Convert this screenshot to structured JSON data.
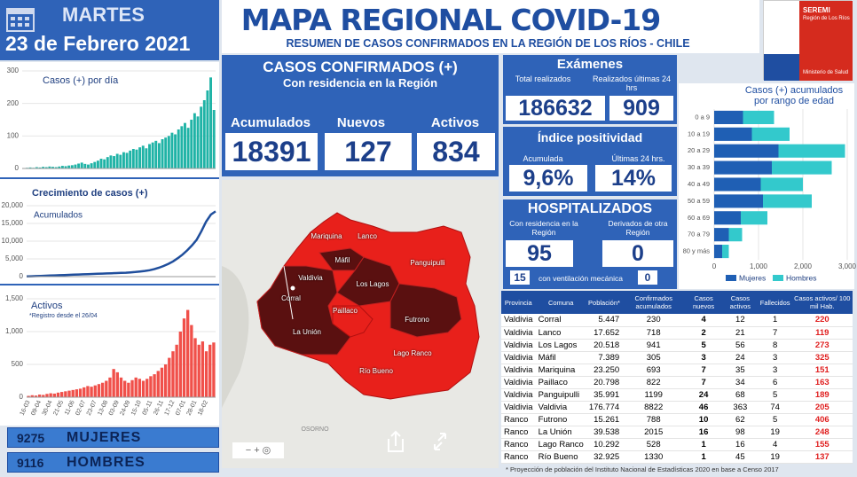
{
  "header": {
    "day": "MARTES",
    "date": "23 de Febrero 2021",
    "title": "MAPA REGIONAL COVID-19",
    "subtitle": "RESUMEN DE CASOS CONFIRMADOS EN LA REGIÓN DE LOS RÍOS - CHILE"
  },
  "logo": {
    "top": "SEREMI",
    "region": "Región de Los Ríos",
    "ministry": "Ministerio de Salud"
  },
  "confirmed": {
    "title": "CASOS CONFIRMADOS (+)",
    "subtitle": "Con residencia en la Región",
    "items": [
      {
        "label": "Acumulados",
        "value": 18391
      },
      {
        "label": "Nuevos",
        "value": 127
      },
      {
        "label": "Activos",
        "value": 834
      }
    ]
  },
  "exams": {
    "title": "Exámenes",
    "total_label": "Total realizados",
    "recent_label": "Realizados últimas 24 hrs",
    "total": 186632,
    "recent": 909
  },
  "positivity": {
    "title": "Índice positividad",
    "accum_label": "Acumulada",
    "recent_label": "Últimas 24 hrs.",
    "accum": "9,6%",
    "recent": "14%"
  },
  "hospital": {
    "title": "HOSPITALIZADOS",
    "resident_label": "Con residencia en la Región",
    "derived_label": "Derivados de otra Región",
    "resident": 95,
    "derived": 0,
    "ventilated": 15,
    "ventilated_label": "con ventilación mecánica",
    "ventilated_derived": 0
  },
  "sex": [
    {
      "value": 9275,
      "label": "MUJERES"
    },
    {
      "value": 9116,
      "label": "HOMBRES"
    }
  ],
  "map": {
    "labels": [
      "Mariquina",
      "Lanco",
      "Máfil",
      "Panguipulli",
      "Valdivia",
      "Los Lagos",
      "Corral",
      "Paillaco",
      "Futrono",
      "La Unión",
      "Lago Ranco",
      "Río Bueno",
      "OSORNO"
    ]
  },
  "table": {
    "header": [
      "Provincia",
      "Comuna",
      "Población*",
      "Confirmados acumulados",
      "Casos nuevos",
      "Casos activos",
      "Fallecidos",
      "Casos activos/ 100 mil Hab."
    ],
    "rows": [
      [
        "Valdivia",
        "Corral",
        "5.447",
        "230",
        "4",
        "12",
        "1",
        "220"
      ],
      [
        "Valdivia",
        "Lanco",
        "17.652",
        "718",
        "2",
        "21",
        "7",
        "119"
      ],
      [
        "Valdivia",
        "Los Lagos",
        "20.518",
        "941",
        "5",
        "56",
        "8",
        "273"
      ],
      [
        "Valdivia",
        "Máfil",
        "7.389",
        "305",
        "3",
        "24",
        "3",
        "325"
      ],
      [
        "Valdivia",
        "Mariquina",
        "23.250",
        "693",
        "7",
        "35",
        "3",
        "151"
      ],
      [
        "Valdivia",
        "Paillaco",
        "20.798",
        "822",
        "7",
        "34",
        "6",
        "163"
      ],
      [
        "Valdivia",
        "Panguipulli",
        "35.991",
        "1199",
        "24",
        "68",
        "5",
        "189"
      ],
      [
        "Valdivia",
        "Valdivia",
        "176.774",
        "8822",
        "46",
        "363",
        "74",
        "205"
      ],
      [
        "Ranco",
        "Futrono",
        "15.261",
        "788",
        "10",
        "62",
        "5",
        "406"
      ],
      [
        "Ranco",
        "La Unión",
        "39.538",
        "2015",
        "16",
        "98",
        "19",
        "248"
      ],
      [
        "Ranco",
        "Lago Ranco",
        "10.292",
        "528",
        "1",
        "16",
        "4",
        "155"
      ],
      [
        "Ranco",
        "Río Bueno",
        "32.925",
        "1330",
        "1",
        "45",
        "19",
        "137"
      ]
    ],
    "footnote": "*  Proyección de población del Instituto Nacional de Estadísticas 2020 en base a Censo 2017"
  },
  "chart_data": [
    {
      "type": "bar",
      "title": "Casos (+) por día",
      "color": "#1fb3a6",
      "values": [
        1,
        2,
        3,
        2,
        4,
        3,
        5,
        4,
        6,
        5,
        4,
        6,
        8,
        7,
        9,
        10,
        12,
        15,
        18,
        14,
        12,
        16,
        20,
        24,
        30,
        28,
        35,
        40,
        38,
        45,
        42,
        50,
        48,
        55,
        60,
        58,
        65,
        70,
        62,
        75,
        80,
        85,
        78,
        90,
        95,
        100,
        110,
        105,
        120,
        130,
        140,
        125,
        150,
        170,
        160,
        190,
        210,
        240,
        280,
        180
      ],
      "ylim": [
        0,
        300
      ],
      "yticks": [
        0,
        100,
        200,
        300
      ],
      "grid": true
    },
    {
      "type": "line",
      "title": "Crecimiento de casos (+)",
      "series": [
        {
          "name": "Acumulados",
          "color": "#1f4e9c",
          "values": [
            50,
            100,
            150,
            200,
            250,
            300,
            350,
            400,
            450,
            500,
            550,
            600,
            650,
            700,
            750,
            800,
            850,
            900,
            950,
            1000,
            1050,
            1100,
            1200,
            1300,
            1450,
            1600,
            1800,
            2100,
            2500,
            3000,
            3600,
            4300,
            5200,
            6200,
            7400,
            8800,
            10400,
            12800,
            15500,
            17500,
            18391
          ]
        }
      ],
      "ylim": [
        0,
        20000
      ],
      "yticks": [
        0,
        {
          "value": 5000,
          "label": "5,000"
        },
        {
          "value": 10000,
          "label": "10,000"
        },
        {
          "value": 15000,
          "label": "15,000"
        },
        {
          "value": 20000,
          "label": "20,000"
        }
      ],
      "grid": true
    },
    {
      "type": "bar",
      "title": "Activos",
      "subtitle": "*Registro desde el 26/04",
      "color": "#f0504a",
      "categories": [
        "16-03",
        null,
        null,
        "09-04",
        null,
        null,
        "30-04",
        null,
        null,
        "21-05",
        null,
        null,
        "11-06",
        null,
        null,
        "02-07",
        null,
        null,
        "23-07",
        null,
        null,
        "13-08",
        null,
        null,
        "03-09",
        null,
        null,
        "24-09",
        null,
        null,
        "15-10",
        null,
        null,
        "05-11",
        null,
        null,
        "26-11",
        null,
        null,
        "17-12",
        null,
        null,
        "07-01",
        null,
        null,
        "28-01",
        null,
        null,
        "18-02",
        null,
        null
      ],
      "values": [
        20,
        30,
        25,
        40,
        35,
        50,
        60,
        55,
        70,
        80,
        90,
        100,
        110,
        120,
        130,
        150,
        170,
        160,
        180,
        200,
        220,
        250,
        300,
        430,
        380,
        300,
        250,
        220,
        260,
        300,
        280,
        250,
        280,
        320,
        350,
        400,
        450,
        500,
        600,
        700,
        800,
        1000,
        1200,
        1330,
        1100,
        900,
        800,
        850,
        700,
        800,
        834
      ],
      "ylim": [
        0,
        1500
      ],
      "yticks": [
        0,
        500,
        {
          "value": 1000,
          "label": "1,000"
        },
        {
          "value": 1500,
          "label": "1,500"
        }
      ],
      "grid": true
    },
    {
      "type": "bar",
      "orientation": "horizontal",
      "stacked": true,
      "title": "Casos (+) acumulados por rango de edad",
      "categories": [
        "0 a 9",
        "10 a 19",
        "20 a 29",
        "30 a 39",
        "40 a 49",
        "50 a 59",
        "60 a 69",
        "70 a 79",
        "80 y más"
      ],
      "series": [
        {
          "name": "Mujeres",
          "color": "#1f5fb4",
          "values": [
            650,
            850,
            1450,
            1300,
            1050,
            1100,
            600,
            330,
            180
          ]
        },
        {
          "name": "Hombres",
          "color": "#33c9cc",
          "values": [
            700,
            850,
            1500,
            1350,
            950,
            1100,
            600,
            300,
            150
          ]
        }
      ],
      "xlim": [
        0,
        3000
      ],
      "xticks": [
        0,
        {
          "value": 1000,
          "label": "1,000"
        },
        {
          "value": 2000,
          "label": "2,000"
        },
        {
          "value": 3000,
          "label": "3,000"
        }
      ],
      "grid": true
    }
  ]
}
